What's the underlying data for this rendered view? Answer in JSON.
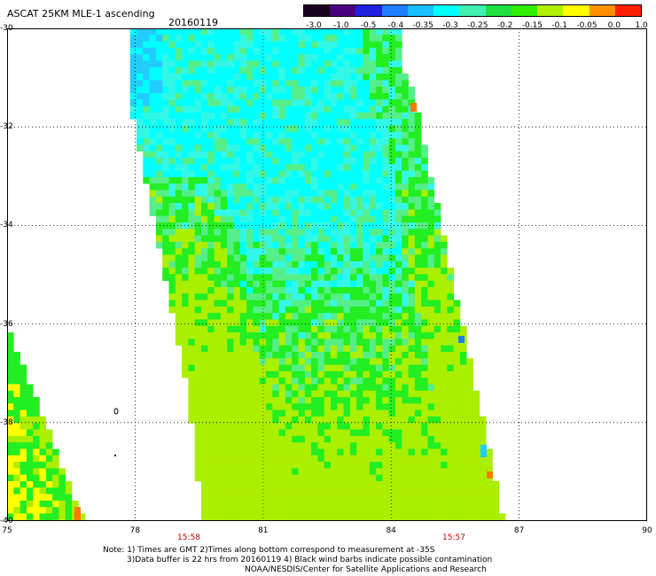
{
  "header": {
    "title": "ASCAT 25KM MLE-1 ascending",
    "date": "20160119"
  },
  "colorbar": {
    "tick_labels": [
      "-3.0",
      "-1.0",
      "-0.5",
      "-0.4",
      "-0.35",
      "-0.3",
      "-0.25",
      "-0.2",
      "-0.15",
      "-0.1",
      "-0.05",
      "0.0",
      "1.0"
    ],
    "colors": [
      "#1a0020",
      "#4a0080",
      "#2020e0",
      "#1f7fff",
      "#18bfff",
      "#00ffff",
      "#40f0b0",
      "#20e040",
      "#30f000",
      "#b0f000",
      "#ffff00",
      "#ff9000",
      "#ff2000"
    ]
  },
  "map": {
    "lon_labels": [
      "75",
      "78",
      "81",
      "84",
      "87",
      "90"
    ],
    "lat_labels": [
      "-30",
      "-32",
      "-34",
      "-36",
      "-38",
      "-40"
    ],
    "lon_range": [
      75,
      90
    ],
    "lat_range": [
      -30,
      -40
    ],
    "grid_style": "dotted",
    "swath_times": [
      "15:58",
      "15:57"
    ],
    "swath_color_levels": [
      "cyan",
      "light-green",
      "green",
      "yellow-green",
      "yellow",
      "blue",
      "orange"
    ]
  },
  "notes": {
    "line1": "Note: 1) Times are GMT 2)Times along bottom correspond to measurement at -35S",
    "line2": "3)Data buffer is 22 hrs from 20160119 4) Black wind barbs indicate possible contamination",
    "line3": "NOAA/NESDIS/Center for Satellite Applications and Research"
  }
}
